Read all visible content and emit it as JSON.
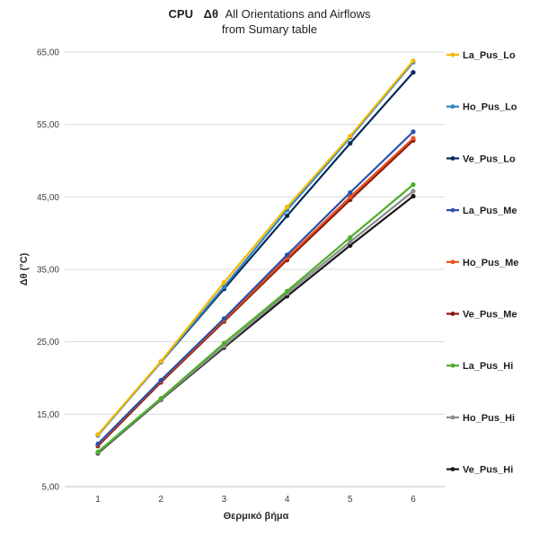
{
  "chart_data": {
    "type": "line",
    "title_parts": [
      "CPU",
      "Δθ",
      "All Orientations and  Airflows"
    ],
    "subtitle": "from Sumary table",
    "xlabel": "Θερμικό βήμα",
    "ylabel": "Δθ (°C)",
    "x": [
      1,
      2,
      3,
      4,
      5,
      6
    ],
    "x_tick_labels": [
      "1",
      "2",
      "3",
      "4",
      "5",
      "6"
    ],
    "ylim": [
      5,
      65
    ],
    "y_ticks": [
      5,
      15,
      25,
      35,
      45,
      55,
      65
    ],
    "y_tick_labels": [
      "5,00",
      "15,00",
      "25,00",
      "35,00",
      "45,00",
      "55,00",
      "65,00"
    ],
    "grid": "horizontal",
    "legend_position": "right",
    "series": [
      {
        "name": "La_Pus_Lo",
        "color": "#f5b800",
        "values": [
          12.2,
          22.3,
          33.2,
          43.6,
          53.4,
          63.8
        ]
      },
      {
        "name": "Ho_Pus_Lo",
        "color": "#2e86c9",
        "values": [
          12.1,
          22.2,
          32.6,
          43.2,
          53.2,
          63.6
        ]
      },
      {
        "name": "Ve_Pus_Lo",
        "color": "#0a2a5c",
        "values": [
          12.1,
          22.2,
          32.3,
          42.4,
          52.4,
          62.2
        ]
      },
      {
        "name": "La_Pus_Me",
        "color": "#2c4fa8",
        "values": [
          10.9,
          19.7,
          28.2,
          37.0,
          45.6,
          54.0
        ]
      },
      {
        "name": "Ho_Pus_Me",
        "color": "#e8531e",
        "values": [
          10.8,
          19.6,
          28.0,
          36.6,
          45.0,
          53.1
        ]
      },
      {
        "name": "Ve_Pus_Me",
        "color": "#8b1a0a",
        "values": [
          10.6,
          19.4,
          27.8,
          36.3,
          44.6,
          52.8
        ]
      },
      {
        "name": "La_Pus_Hi",
        "color": "#4caf2a",
        "values": [
          9.8,
          17.2,
          24.8,
          32.0,
          39.4,
          46.7
        ]
      },
      {
        "name": "Ho_Pus_Hi",
        "color": "#8c8c8c",
        "values": [
          9.7,
          17.1,
          24.4,
          31.7,
          38.8,
          45.8
        ]
      },
      {
        "name": "Ve_Pus_Hi",
        "color": "#1a1a1a",
        "values": [
          9.6,
          17.0,
          24.2,
          31.3,
          38.3,
          45.1
        ]
      }
    ]
  }
}
